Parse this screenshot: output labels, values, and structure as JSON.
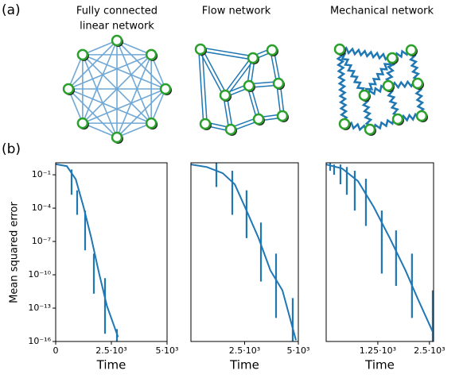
{
  "figure": {
    "label_a": "(a)",
    "label_b": "(b)",
    "networks": [
      {
        "title": [
          "Fully connected",
          "linear network"
        ]
      },
      {
        "title": [
          "Flow network"
        ]
      },
      {
        "title": [
          "Mechanical network"
        ]
      }
    ]
  },
  "chart_data": [
    {
      "type": "line",
      "xlabel": "Time",
      "ylabel": "Mean squared error",
      "log_y": true,
      "xlim": [
        0,
        5000
      ],
      "ylim": [
        1e-16,
        1.2
      ],
      "xticks": [
        0,
        {
          "value": 2500,
          "label": "2.5·10³"
        },
        {
          "value": 5000,
          "label": "5·10³"
        }
      ],
      "yticks": [
        {
          "value": 0.1,
          "label": "10⁻¹"
        },
        {
          "value": 0.0001,
          "label": "10⁻⁴"
        },
        {
          "value": 1e-07,
          "label": "10⁻⁷"
        },
        {
          "value": 1e-10,
          "label": "10⁻¹⁰"
        },
        {
          "value": 1e-13,
          "label": "10⁻¹³"
        },
        {
          "value": 1e-16,
          "label": "10⁻¹⁶"
        }
      ],
      "series": [
        {
          "color": "#1f77b4",
          "x": [
            0,
            500,
            900,
            1250,
            1600,
            1950,
            2300,
            2800
          ],
          "values": [
            0.9,
            0.6,
            0.04,
            0.00013,
            2e-07,
            1.3e-10,
            1.6e-13,
            2.5e-16
          ],
          "err_x": [
            714,
            964,
            1321,
            1714,
            2214,
            2750
          ],
          "err_low": [
            0.0016,
            2.5e-05,
            1.6e-08,
            2e-12,
            5e-16,
            8e-17
          ],
          "err_high": [
            0.3,
            0.004,
            6e-05,
            8e-09,
            5e-11,
            1.3e-15
          ]
        }
      ]
    },
    {
      "type": "line",
      "xlabel": "Time",
      "log_y": true,
      "xlim": [
        0,
        5000
      ],
      "ylim": [
        1e-16,
        1.2
      ],
      "xticks": [
        {
          "value": 2500,
          "label": "2.5·10³"
        },
        {
          "value": 5000,
          "label": "5·10³"
        }
      ],
      "series": [
        {
          "color": "#1f77b4",
          "x": [
            0,
            740,
            1480,
            2040,
            2590,
            3150,
            3700,
            4260,
            4890
          ],
          "values": [
            0.85,
            0.5,
            0.14,
            0.014,
            6e-05,
            2e-07,
            2.5e-10,
            4e-12,
            1.3e-16
          ],
          "err_x": [
            1185,
            1926,
            2590,
            3260,
            3963,
            4740
          ],
          "err_low": [
            0.008,
            2.5e-05,
            2e-07,
            2.5e-11,
            1.3e-14,
            8e-17
          ],
          "err_high": [
            1.2,
            0.23,
            0.004,
            5e-06,
            8e-09,
            8e-13
          ]
        }
      ]
    },
    {
      "type": "line",
      "xlabel": "Time",
      "log_y": true,
      "xlim": [
        0,
        2600
      ],
      "ylim": [
        1e-16,
        1.2
      ],
      "xticks": [
        {
          "value": 1250,
          "label": "1.25·10³"
        },
        {
          "value": 2500,
          "label": "2.5·10³"
        }
      ],
      "series": [
        {
          "color": "#1f77b4",
          "x": [
            0,
            385,
            770,
            1150,
            1540,
            1920,
            2210,
            2600
          ],
          "values": [
            0.85,
            0.37,
            0.027,
            0.00013,
            2e-07,
            2.5e-10,
            8e-13,
            5e-16
          ],
          "err_x": [
            96,
            192,
            346,
            500,
            692,
            962,
            1346,
            1692,
            2077,
            2580
          ],
          "err_low": [
            0.23,
            0.1,
            0.014,
            0.0016,
            6e-05,
            2.5e-06,
            1.3e-10,
            1e-11,
            1.3e-14,
            8e-17
          ],
          "err_high": [
            1.2,
            0.85,
            0.85,
            0.5,
            0.23,
            0.044,
            6e-05,
            1e-06,
            8e-09,
            4e-12
          ]
        }
      ]
    }
  ]
}
